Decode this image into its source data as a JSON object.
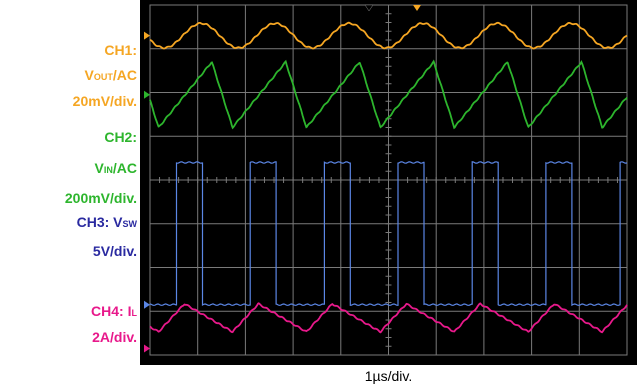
{
  "labels": {
    "ch1_line1": "CH1:",
    "ch1_line2_main": "V",
    "ch1_line2_sub": "OUT",
    "ch1_line2_tail": "/AC",
    "ch1_scale": "20mV/div.",
    "ch2_line1": "CH2:",
    "ch2_line2_main": "V",
    "ch2_line2_sub": "IN",
    "ch2_line2_tail": "/AC",
    "ch2_scale": "200mV/div.",
    "ch3_line1_main": "CH3: V",
    "ch3_line1_sub": "SW",
    "ch3_scale": "5V/div.",
    "ch4_line1_main": "CH4: I",
    "ch4_line1_sub": "L",
    "ch4_scale": "2A/div."
  },
  "timebase": "1µs/div.",
  "colors": {
    "ch1": "#f5a623",
    "ch2": "#2db52d",
    "ch3": "#5b86e5",
    "ch4": "#e8198b",
    "ch3_label": "#2a2aa0",
    "grid": "#7a7a7a",
    "screen": "#000000"
  },
  "chart_data": {
    "type": "line",
    "title": "",
    "xlabel": "1µs/div.",
    "grid": true,
    "divisions": {
      "x": 10,
      "y": 8
    },
    "period_div": 1.55,
    "series": [
      {
        "name": "CH1",
        "scale": "20mV/div.",
        "shape": "sine",
        "center_div": 7.3,
        "amplitude_div": 0.28,
        "phase_div": 0.3
      },
      {
        "name": "CH2",
        "scale": "200mV/div.",
        "shape": "sawtooth",
        "center_div": 5.95,
        "amplitude_div": 0.75,
        "phase_div": 0.18,
        "rise_frac": 0.72
      },
      {
        "name": "CH3",
        "scale": "5V/div.",
        "shape": "pulse",
        "low_div": 1.15,
        "high_div": 4.4,
        "phase_div": 0.55,
        "duty": 0.35
      },
      {
        "name": "CH4",
        "scale": "2A/div.",
        "shape": "triangle",
        "center_div": 0.85,
        "amplitude_div": 0.32,
        "phase_div": 0.18,
        "rise_frac": 0.35
      }
    ]
  }
}
